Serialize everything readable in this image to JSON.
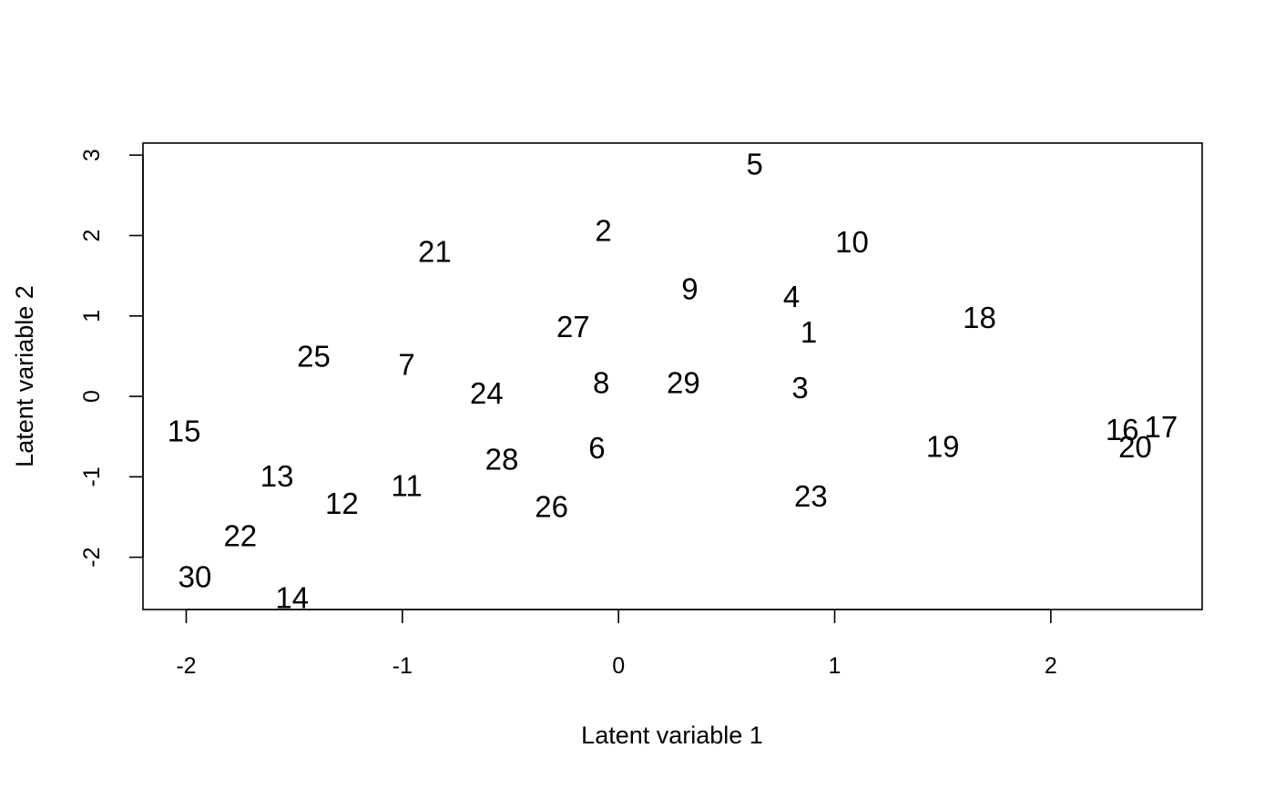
{
  "chart_data": {
    "type": "scatter",
    "marker": "text-label",
    "title": "",
    "xlabel": "Latent variable  1",
    "ylabel": "Latent variable  2",
    "xlim": [
      -2.2,
      2.7
    ],
    "ylim": [
      -2.65,
      3.15
    ],
    "x_ticks": [
      -2,
      -1,
      0,
      1,
      2
    ],
    "x_tick_labels": [
      "-2",
      "-1",
      "0",
      "1",
      "2"
    ],
    "y_ticks": [
      -2,
      -1,
      0,
      1,
      2,
      3
    ],
    "y_tick_labels": [
      "-2",
      "-1",
      "0",
      "1",
      "2",
      "3"
    ],
    "grid": false,
    "legend": "none",
    "points": [
      {
        "label": "1",
        "x": 0.88,
        "y": 0.8
      },
      {
        "label": "2",
        "x": -0.07,
        "y": 2.06
      },
      {
        "label": "3",
        "x": 0.84,
        "y": 0.11
      },
      {
        "label": "4",
        "x": 0.8,
        "y": 1.24
      },
      {
        "label": "5",
        "x": 0.63,
        "y": 2.89
      },
      {
        "label": "6",
        "x": -0.1,
        "y": -0.64
      },
      {
        "label": "7",
        "x": -0.98,
        "y": 0.4
      },
      {
        "label": "8",
        "x": -0.08,
        "y": 0.17
      },
      {
        "label": "9",
        "x": 0.33,
        "y": 1.34
      },
      {
        "label": "10",
        "x": 1.08,
        "y": 1.92
      },
      {
        "label": "11",
        "x": -0.98,
        "y": -1.11
      },
      {
        "label": "12",
        "x": -1.28,
        "y": -1.33
      },
      {
        "label": "13",
        "x": -1.58,
        "y": -0.99
      },
      {
        "label": "14",
        "x": -1.51,
        "y": -2.5
      },
      {
        "label": "15",
        "x": -2.01,
        "y": -0.43
      },
      {
        "label": "16",
        "x": 2.33,
        "y": -0.41
      },
      {
        "label": "17",
        "x": 2.51,
        "y": -0.38
      },
      {
        "label": "18",
        "x": 1.67,
        "y": 0.98
      },
      {
        "label": "19",
        "x": 1.5,
        "y": -0.62
      },
      {
        "label": "20",
        "x": 2.39,
        "y": -0.63
      },
      {
        "label": "21",
        "x": -0.85,
        "y": 1.8
      },
      {
        "label": "22",
        "x": -1.75,
        "y": -1.73
      },
      {
        "label": "23",
        "x": 0.89,
        "y": -1.24
      },
      {
        "label": "24",
        "x": -0.61,
        "y": 0.04
      },
      {
        "label": "25",
        "x": -1.41,
        "y": 0.5
      },
      {
        "label": "26",
        "x": -0.31,
        "y": -1.37
      },
      {
        "label": "27",
        "x": -0.21,
        "y": 0.87
      },
      {
        "label": "28",
        "x": -0.54,
        "y": -0.78
      },
      {
        "label": "29",
        "x": 0.3,
        "y": 0.17
      },
      {
        "label": "30",
        "x": -1.96,
        "y": -2.24
      }
    ]
  }
}
